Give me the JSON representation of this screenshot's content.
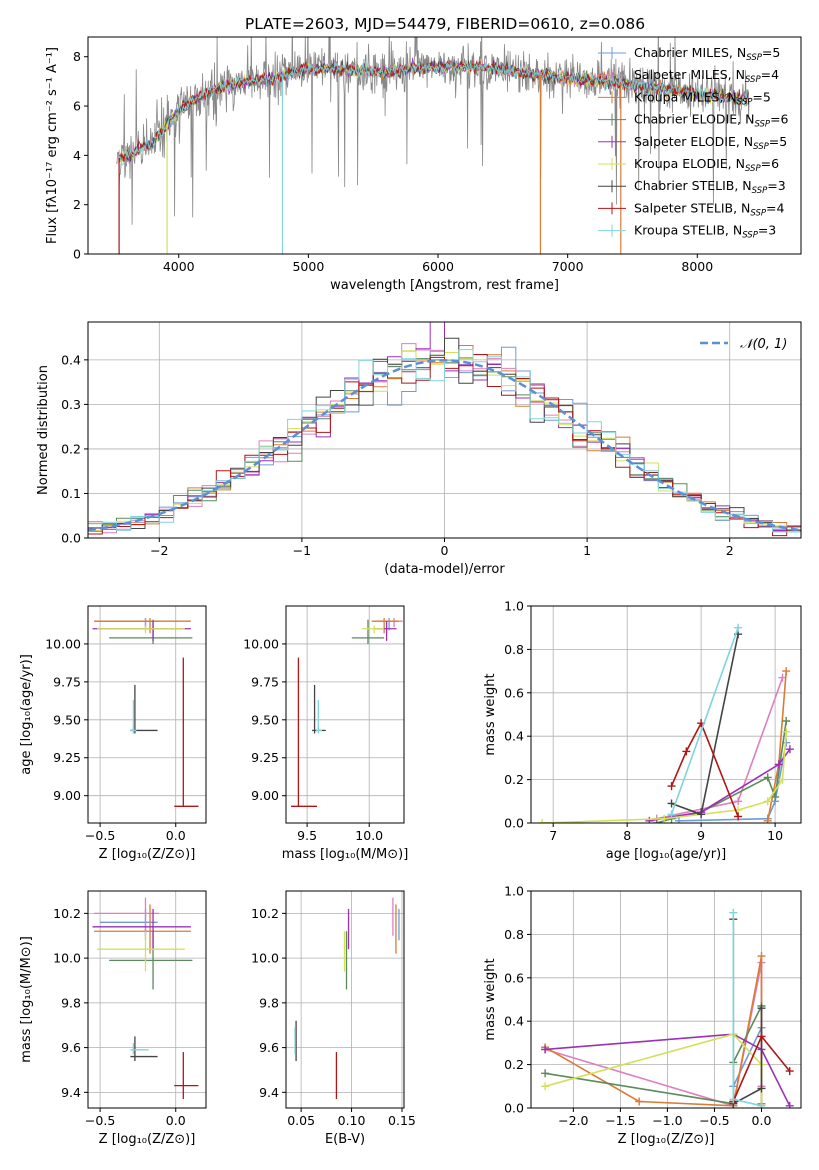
{
  "figure": {
    "title": "PLATE=2603, MJD=54479, FIBERID=0610, z=0.086"
  },
  "colors": {
    "Chabrier MILES": "#6f9bd8",
    "Salpeter MILES": "#e07fc0",
    "Kroupa MILES": "#d97b35",
    "Chabrier ELODIE": "#5b8a5b",
    "Salpeter ELODIE": "#9b30b8",
    "Kroupa ELODIE": "#d4e05a",
    "Chabrier STELIB": "#444444",
    "Salpeter STELIB": "#b01616",
    "Kroupa STELIB": "#7fd4de"
  },
  "chart_data": [
    {
      "id": "spectrum",
      "type": "line",
      "xlabel": "wavelength [Angstrom, rest frame]",
      "ylabel": "Flux [fλ10⁻¹⁷ erg cm⁻² s⁻¹ A⁻¹]",
      "xlim": [
        3300,
        8800
      ],
      "ylim": [
        0,
        8.8
      ],
      "xticks": [
        4000,
        5000,
        6000,
        7000,
        8000
      ],
      "yticks": [
        0,
        2,
        4,
        6,
        8
      ],
      "grid": false,
      "legend_position": "right",
      "legend": [
        {
          "label": "Chabrier MILES",
          "sub": "SSP",
          "n": "5"
        },
        {
          "label": "Salpeter MILES",
          "sub": "SSP",
          "n": "4"
        },
        {
          "label": "Kroupa MILES",
          "sub": "SSP",
          "n": "5"
        },
        {
          "label": "Chabrier ELODIE",
          "sub": "SSP",
          "n": "6"
        },
        {
          "label": "Salpeter ELODIE",
          "sub": "SSP",
          "n": "5"
        },
        {
          "label": "Kroupa ELODIE",
          "sub": "SSP",
          "n": "6"
        },
        {
          "label": "Chabrier STELIB",
          "sub": "SSP",
          "n": "3"
        },
        {
          "label": "Salpeter STELIB",
          "sub": "SSP",
          "n": "4"
        },
        {
          "label": "Kroupa STELIB",
          "sub": "SSP",
          "n": "3"
        }
      ],
      "continuum": [
        [
          3520,
          3.9
        ],
        [
          3600,
          3.9
        ],
        [
          3700,
          4.3
        ],
        [
          3800,
          4.5
        ],
        [
          3900,
          5.2
        ],
        [
          4000,
          5.8
        ],
        [
          4100,
          6.2
        ],
        [
          4200,
          6.5
        ],
        [
          4300,
          6.7
        ],
        [
          4500,
          7.0
        ],
        [
          4700,
          7.1
        ],
        [
          5000,
          7.5
        ],
        [
          5300,
          7.5
        ],
        [
          5600,
          7.4
        ],
        [
          6000,
          7.6
        ],
        [
          6300,
          7.6
        ],
        [
          6600,
          7.4
        ],
        [
          7000,
          7.1
        ],
        [
          7300,
          7.0
        ],
        [
          7600,
          6.8
        ],
        [
          8000,
          6.5
        ],
        [
          8300,
          6.3
        ],
        [
          8500,
          6.4
        ]
      ]
    },
    {
      "id": "residuals",
      "type": "line",
      "xlabel": "(data-model)/error",
      "ylabel": "Normed distribution",
      "xlim": [
        -2.5,
        2.5
      ],
      "ylim": [
        0,
        0.485
      ],
      "xticks": [
        -2,
        -1,
        0,
        1,
        2
      ],
      "yticks": [
        0.0,
        0.1,
        0.2,
        0.3,
        0.4
      ],
      "grid": true,
      "legend_label": "𝒩(0, 1)",
      "bin_width": 0.1
    },
    {
      "id": "age_vs_Z",
      "type": "scatter",
      "xlabel": "Z [log₁₀(Z/Z⊙)]",
      "ylabel": "age  [log₁₀(age/yr)]",
      "xlim": [
        -0.58,
        0.2
      ],
      "ylim": [
        8.82,
        10.25
      ],
      "xticks": [
        -0.5,
        0.0
      ],
      "yticks": [
        9.0,
        9.25,
        9.5,
        9.75,
        10.0
      ],
      "grid": true,
      "points": [
        {
          "model": "Chabrier MILES",
          "x": -0.2,
          "y": 10.15,
          "xerr": [
            0.3,
            0.08
          ],
          "yerr": [
            0.06,
            0.02
          ]
        },
        {
          "model": "Salpeter MILES",
          "x": -0.2,
          "y": 10.15,
          "xerr": [
            0.34,
            0.09
          ],
          "yerr": [
            0.04,
            0.02
          ]
        },
        {
          "model": "Kroupa MILES",
          "x": -0.17,
          "y": 10.15,
          "xerr": [
            0.37,
            0.27
          ],
          "yerr": [
            0.08,
            0.02
          ]
        },
        {
          "model": "Chabrier ELODIE",
          "x": -0.15,
          "y": 10.04,
          "xerr": [
            0.29,
            0.26
          ],
          "yerr": [
            0.04,
            0.12
          ]
        },
        {
          "model": "Salpeter ELODIE",
          "x": -0.15,
          "y": 10.1,
          "xerr": [
            0.4,
            0.25
          ],
          "yerr": [
            0.08,
            0.05
          ]
        },
        {
          "model": "Kroupa ELODIE",
          "x": -0.2,
          "y": 10.1,
          "xerr": [
            0.32,
            0.26
          ],
          "yerr": [
            0.03,
            0.02
          ]
        },
        {
          "model": "Chabrier STELIB",
          "x": -0.27,
          "y": 9.43,
          "xerr": [
            0.03,
            0.15
          ],
          "yerr": [
            0.02,
            0.3
          ]
        },
        {
          "model": "Salpeter STELIB",
          "x": 0.05,
          "y": 8.93,
          "xerr": [
            0.06,
            0.1
          ],
          "yerr": [
            0.0,
            0.98
          ]
        },
        {
          "model": "Kroupa STELIB",
          "x": -0.28,
          "y": 9.43,
          "xerr": [
            0.02,
            0.02
          ],
          "yerr": [
            0.02,
            0.2
          ]
        }
      ]
    },
    {
      "id": "age_vs_mass",
      "type": "scatter",
      "xlabel": "mass [log₁₀(M/M⊙)]",
      "ylabel": "",
      "xlim": [
        9.33,
        10.28
      ],
      "ylim": [
        8.82,
        10.25
      ],
      "xticks": [
        9.5,
        10.0
      ],
      "yticks": [
        9.0,
        9.25,
        9.5,
        9.75,
        10.0
      ],
      "grid": true,
      "points": [
        {
          "model": "Chabrier MILES",
          "x": 10.16,
          "y": 10.15,
          "xerr": [
            0.08,
            0.06
          ],
          "yerr": [
            0.06,
            0.02
          ]
        },
        {
          "model": "Salpeter MILES",
          "x": 10.2,
          "y": 10.15,
          "xerr": [
            0.1,
            0.07
          ],
          "yerr": [
            0.04,
            0.02
          ]
        },
        {
          "model": "Kroupa MILES",
          "x": 10.12,
          "y": 10.15,
          "xerr": [
            0.1,
            0.12
          ],
          "yerr": [
            0.08,
            0.02
          ]
        },
        {
          "model": "Chabrier ELODIE",
          "x": 9.99,
          "y": 10.04,
          "xerr": [
            0.13,
            0.13
          ],
          "yerr": [
            0.04,
            0.12
          ]
        },
        {
          "model": "Salpeter ELODIE",
          "x": 10.14,
          "y": 10.1,
          "xerr": [
            0.1,
            0.08
          ],
          "yerr": [
            0.08,
            0.05
          ]
        },
        {
          "model": "Kroupa ELODIE",
          "x": 10.04,
          "y": 10.1,
          "xerr": [
            0.1,
            0.08
          ],
          "yerr": [
            0.03,
            0.02
          ]
        },
        {
          "model": "Chabrier STELIB",
          "x": 9.56,
          "y": 9.43,
          "xerr": [
            0.02,
            0.09
          ],
          "yerr": [
            0.02,
            0.3
          ]
        },
        {
          "model": "Salpeter STELIB",
          "x": 9.43,
          "y": 8.93,
          "xerr": [
            0.06,
            0.15
          ],
          "yerr": [
            0.0,
            0.98
          ]
        },
        {
          "model": "Kroupa STELIB",
          "x": 9.59,
          "y": 9.43,
          "xerr": [
            0.02,
            0.03
          ],
          "yerr": [
            0.02,
            0.2
          ]
        }
      ]
    },
    {
      "id": "weights_vs_age",
      "type": "line",
      "xlabel": "age  [log₁₀(age/yr)]",
      "ylabel": "mass weight",
      "xlim": [
        6.7,
        10.35
      ],
      "ylim": [
        0.0,
        1.0
      ],
      "xticks": [
        7,
        8,
        9,
        10
      ],
      "yticks": [
        0.0,
        0.2,
        0.4,
        0.6,
        0.8,
        1.0
      ],
      "grid": true,
      "series": [
        {
          "model": "Chabrier MILES",
          "x": [
            8.7,
            9.9,
            10.0,
            10.15
          ],
          "y": [
            0.01,
            0.02,
            0.1,
            0.37
          ]
        },
        {
          "model": "Salpeter MILES",
          "x": [
            8.4,
            9.5,
            10.1
          ],
          "y": [
            0.02,
            0.1,
            0.67
          ]
        },
        {
          "model": "Kroupa MILES",
          "x": [
            9.9,
            10.05,
            10.15
          ],
          "y": [
            0.01,
            0.27,
            0.7
          ]
        },
        {
          "model": "Chabrier ELODIE",
          "x": [
            8.4,
            8.6,
            9.0,
            9.9,
            10.0,
            10.15
          ],
          "y": [
            0.0,
            0.02,
            0.05,
            0.21,
            0.12,
            0.47
          ]
        },
        {
          "model": "Salpeter ELODIE",
          "x": [
            8.3,
            9.0,
            10.05,
            10.2
          ],
          "y": [
            0.01,
            0.05,
            0.27,
            0.34
          ]
        },
        {
          "model": "Kroupa ELODIE",
          "x": [
            6.85,
            8.5,
            9.5,
            9.9,
            10.1,
            10.15
          ],
          "y": [
            0.0,
            0.02,
            0.06,
            0.1,
            0.2,
            0.42
          ]
        },
        {
          "model": "Chabrier STELIB",
          "x": [
            8.6,
            9.0,
            9.5
          ],
          "y": [
            0.09,
            0.04,
            0.87
          ]
        },
        {
          "model": "Salpeter STELIB",
          "x": [
            8.6,
            8.8,
            9.0,
            9.5
          ],
          "y": [
            0.17,
            0.33,
            0.46,
            0.03
          ]
        },
        {
          "model": "Kroupa STELIB",
          "x": [
            8.6,
            9.5
          ],
          "y": [
            0.04,
            0.9
          ]
        }
      ]
    },
    {
      "id": "mass_vs_Z",
      "type": "scatter",
      "xlabel": "Z [log₁₀(Z/Z⊙)]",
      "ylabel": "mass [log₁₀(M/M⊙)]",
      "xlim": [
        -0.58,
        0.2
      ],
      "ylim": [
        9.33,
        10.3
      ],
      "xticks": [
        -0.5,
        0.0
      ],
      "yticks": [
        9.4,
        9.6,
        9.8,
        10.0,
        10.2
      ],
      "grid": true,
      "points": [
        {
          "model": "Chabrier MILES",
          "x": -0.2,
          "y": 10.16,
          "xerr": [
            0.3,
            0.08
          ],
          "yerr": [
            0.08,
            0.06
          ]
        },
        {
          "model": "Salpeter MILES",
          "x": -0.2,
          "y": 10.2,
          "xerr": [
            0.34,
            0.09
          ],
          "yerr": [
            0.1,
            0.07
          ]
        },
        {
          "model": "Kroupa MILES",
          "x": -0.17,
          "y": 10.12,
          "xerr": [
            0.37,
            0.27
          ],
          "yerr": [
            0.1,
            0.12
          ]
        },
        {
          "model": "Chabrier ELODIE",
          "x": -0.15,
          "y": 9.99,
          "xerr": [
            0.29,
            0.26
          ],
          "yerr": [
            0.13,
            0.13
          ]
        },
        {
          "model": "Salpeter ELODIE",
          "x": -0.15,
          "y": 10.14,
          "xerr": [
            0.4,
            0.25
          ],
          "yerr": [
            0.1,
            0.08
          ]
        },
        {
          "model": "Kroupa ELODIE",
          "x": -0.2,
          "y": 10.04,
          "xerr": [
            0.32,
            0.26
          ],
          "yerr": [
            0.1,
            0.08
          ]
        },
        {
          "model": "Chabrier STELIB",
          "x": -0.27,
          "y": 9.56,
          "xerr": [
            0.03,
            0.15
          ],
          "yerr": [
            0.02,
            0.09
          ]
        },
        {
          "model": "Salpeter STELIB",
          "x": 0.05,
          "y": 9.43,
          "xerr": [
            0.06,
            0.1
          ],
          "yerr": [
            0.06,
            0.15
          ]
        },
        {
          "model": "Kroupa STELIB",
          "x": -0.28,
          "y": 9.59,
          "xerr": [
            0.02,
            0.1
          ],
          "yerr": [
            0.02,
            0.03
          ]
        }
      ]
    },
    {
      "id": "mass_vs_ebv",
      "type": "scatter",
      "xlabel": "E(B-V)",
      "ylabel": "",
      "xlim": [
        0.035,
        0.152
      ],
      "ylim": [
        9.33,
        10.3
      ],
      "xticks": [
        0.05,
        0.1,
        0.15
      ],
      "yticks": [
        9.4,
        9.6,
        9.8,
        10.0,
        10.2
      ],
      "grid": true,
      "points": [
        {
          "model": "Chabrier MILES",
          "x": 0.147,
          "y": 10.16,
          "xerr": [
            0,
            0
          ],
          "yerr": [
            0.08,
            0.06
          ]
        },
        {
          "model": "Salpeter MILES",
          "x": 0.141,
          "y": 10.2,
          "xerr": [
            0,
            0
          ],
          "yerr": [
            0.1,
            0.07
          ]
        },
        {
          "model": "Kroupa MILES",
          "x": 0.144,
          "y": 10.12,
          "xerr": [
            0,
            0
          ],
          "yerr": [
            0.1,
            0.12
          ]
        },
        {
          "model": "Chabrier ELODIE",
          "x": 0.095,
          "y": 9.99,
          "xerr": [
            0,
            0
          ],
          "yerr": [
            0.13,
            0.13
          ]
        },
        {
          "model": "Salpeter ELODIE",
          "x": 0.097,
          "y": 10.14,
          "xerr": [
            0,
            0
          ],
          "yerr": [
            0.1,
            0.08
          ]
        },
        {
          "model": "Kroupa ELODIE",
          "x": 0.093,
          "y": 10.04,
          "xerr": [
            0,
            0
          ],
          "yerr": [
            0.1,
            0.08
          ]
        },
        {
          "model": "Chabrier STELIB",
          "x": 0.045,
          "y": 9.56,
          "xerr": [
            0,
            0
          ],
          "yerr": [
            0.02,
            0.16
          ]
        },
        {
          "model": "Salpeter STELIB",
          "x": 0.085,
          "y": 9.43,
          "xerr": [
            0,
            0
          ],
          "yerr": [
            0.06,
            0.15
          ]
        },
        {
          "model": "Kroupa STELIB",
          "x": 0.044,
          "y": 9.59,
          "xerr": [
            0,
            0
          ],
          "yerr": [
            0.02,
            0.1
          ]
        }
      ]
    },
    {
      "id": "weights_vs_Z",
      "type": "line",
      "xlabel": "Z [log₁₀(Z/Z⊙)]",
      "ylabel": "mass weight",
      "xlim": [
        -2.45,
        0.42
      ],
      "ylim": [
        0.0,
        1.0
      ],
      "xticks": [
        -2.0,
        -1.5,
        -1.0,
        -0.5,
        0.0
      ],
      "yticks": [
        0.0,
        0.2,
        0.4,
        0.6,
        0.8,
        1.0
      ],
      "grid": true,
      "series": [
        {
          "model": "Chabrier MILES",
          "x": [
            -0.3,
            -0.3,
            0.0,
            0.0
          ],
          "y": [
            0.01,
            0.1,
            0.37,
            0.02
          ]
        },
        {
          "model": "Salpeter MILES",
          "x": [
            -2.3,
            -0.3,
            0.0,
            0.0
          ],
          "y": [
            0.27,
            0.01,
            0.67,
            0.1
          ]
        },
        {
          "model": "Kroupa MILES",
          "x": [
            -2.3,
            -1.3,
            -0.3,
            0.0,
            0.0
          ],
          "y": [
            0.28,
            0.03,
            0.01,
            0.7,
            0.02
          ]
        },
        {
          "model": "Chabrier ELODIE",
          "x": [
            -2.3,
            -0.3,
            -0.3,
            0.0
          ],
          "y": [
            0.16,
            0.02,
            0.21,
            0.47
          ]
        },
        {
          "model": "Salpeter ELODIE",
          "x": [
            -2.3,
            -0.3,
            0.0,
            0.3
          ],
          "y": [
            0.27,
            0.34,
            0.27,
            0.01
          ]
        },
        {
          "model": "Kroupa ELODIE",
          "x": [
            -2.3,
            -0.3,
            0.0,
            0.0
          ],
          "y": [
            0.1,
            0.34,
            0.2,
            0.01
          ]
        },
        {
          "model": "Chabrier STELIB",
          "x": [
            -0.3,
            -0.3,
            0.0,
            0.0
          ],
          "y": [
            0.87,
            0.02,
            0.09,
            0.46
          ]
        },
        {
          "model": "Salpeter STELIB",
          "x": [
            -0.3,
            0.0,
            0.3
          ],
          "y": [
            0.03,
            0.33,
            0.17
          ]
        },
        {
          "model": "Kroupa STELIB",
          "x": [
            -0.3,
            -0.3,
            0.0
          ],
          "y": [
            0.9,
            0.04,
            0.01
          ]
        }
      ]
    }
  ]
}
